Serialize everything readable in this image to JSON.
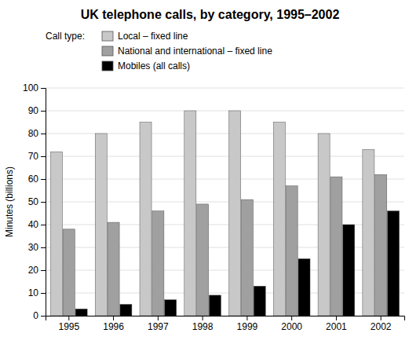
{
  "chart_data": {
    "type": "bar",
    "title": "UK telephone calls, by category, 1995–2002",
    "ylabel": "Minutes (billions)",
    "legend_title": "Call type:",
    "legend": "top-left",
    "grid": true,
    "categories": [
      "1995",
      "1996",
      "1997",
      "1998",
      "1999",
      "2000",
      "2001",
      "2002"
    ],
    "series": [
      {
        "name": "Local – fixed line",
        "color": "#c8c8c8",
        "values": [
          72,
          80,
          85,
          90,
          90,
          85,
          80,
          73
        ]
      },
      {
        "name": "National and international – fixed line",
        "color": "#a0a0a0",
        "values": [
          38,
          41,
          46,
          49,
          51,
          57,
          61,
          62
        ]
      },
      {
        "name": "Mobiles (all calls)",
        "color": "#000000",
        "values": [
          3,
          5,
          7,
          9,
          13,
          25,
          40,
          46
        ]
      }
    ],
    "ylim": [
      0,
      100
    ],
    "yticks": [
      0,
      10,
      20,
      30,
      40,
      50,
      60,
      70,
      80,
      90,
      100
    ]
  }
}
